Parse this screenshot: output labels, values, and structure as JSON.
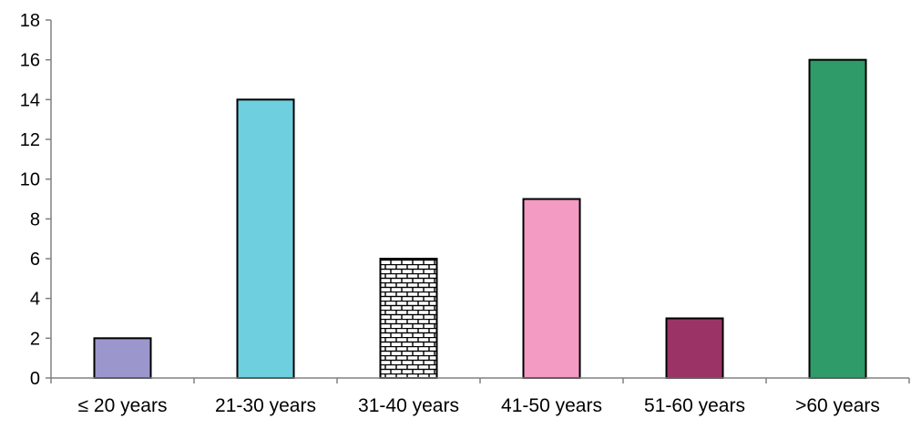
{
  "chart_data": {
    "type": "bar",
    "categories": [
      "≤ 20 years",
      "21-30 years",
      "31-40 years",
      "41-50 years",
      "51-60 years",
      ">60 years"
    ],
    "values": [
      2,
      14,
      6,
      9,
      3,
      16
    ],
    "bar_colors": [
      "#9b96cc",
      "#6ecfdf",
      "brick-pattern",
      "#f39bc2",
      "#9b3366",
      "#2e9b69"
    ],
    "ylim": [
      0,
      18
    ],
    "yticks": [
      "0",
      "2",
      "4",
      "6",
      "8",
      "10",
      "12",
      "14",
      "16",
      "18"
    ],
    "title": "",
    "xlabel": "",
    "ylabel": "",
    "grid": false,
    "legend": "none"
  }
}
